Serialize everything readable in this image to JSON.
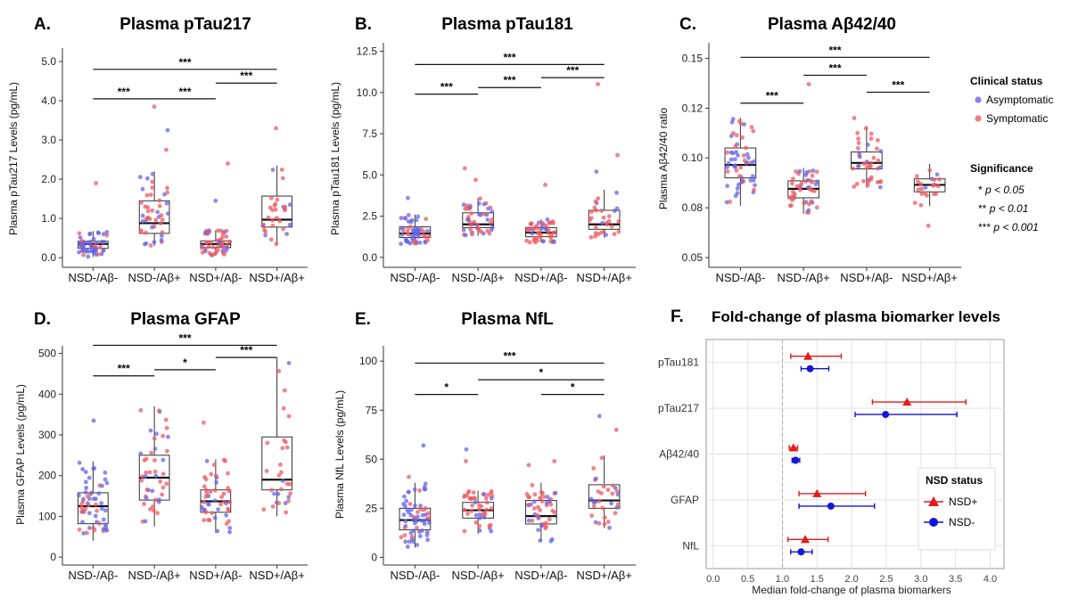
{
  "colors": {
    "asymptomatic": "#6464e6",
    "symptomatic": "#ee5a60",
    "nsd_plus": "#e41a1c",
    "nsd_minus": "#1515d6"
  },
  "legend": {
    "title": "Clinical status",
    "items": [
      "Asymptomatic",
      "Symptomatic"
    ],
    "sig_title": "Significance",
    "sig_items": [
      {
        "stars": "*",
        "text": "p < 0.05"
      },
      {
        "stars": "**",
        "text": "p < 0.01"
      },
      {
        "stars": "***",
        "text": "p < 0.001"
      }
    ]
  },
  "chart_data": [
    {
      "panel": "A.",
      "type": "box",
      "title": "Plasma pTau217",
      "ylabel": "Plasma pTau217 Levels (pg/mL)",
      "ylim": [
        -0.2,
        5.25
      ],
      "yticks": [
        "0.0",
        "1.0",
        "2.0",
        "3.0",
        "4.0",
        "5.0"
      ],
      "categories": [
        "NSD-/Aβ-",
        "NSD-/Aβ+",
        "NSD+/Aβ-",
        "NSD+/Aβ+"
      ],
      "boxes": [
        {
          "q1": 0.24,
          "median": 0.35,
          "q3": 0.42,
          "low": 0.02,
          "high": 0.68
        },
        {
          "q1": 0.62,
          "median": 0.88,
          "q3": 1.45,
          "low": 0.3,
          "high": 2.2
        },
        {
          "q1": 0.26,
          "median": 0.35,
          "q3": 0.43,
          "low": 0.05,
          "high": 0.7
        },
        {
          "q1": 0.78,
          "median": 0.97,
          "q3": 1.57,
          "low": 0.35,
          "high": 2.35
        }
      ],
      "points": [
        {
          "n": 55,
          "sym": 0.25,
          "seed": 3,
          "outliers": [
            1.9
          ]
        },
        {
          "n": 45,
          "sym": 0.65,
          "seed": 7,
          "outliers": [
            3.25,
            3.85,
            2.75
          ]
        },
        {
          "n": 48,
          "sym": 0.75,
          "seed": 11,
          "outliers": [
            1.45,
            2.4
          ]
        },
        {
          "n": 30,
          "sym": 0.8,
          "seed": 13,
          "outliers": [
            3.3
          ]
        }
      ],
      "comparisons": [
        {
          "from": 0,
          "to": 3,
          "y": 4.8,
          "label": "***"
        },
        {
          "from": 0,
          "to": 1,
          "y": 4.05,
          "label": "***"
        },
        {
          "from": 1,
          "to": 2,
          "y": 4.05,
          "label": "***"
        },
        {
          "from": 2,
          "to": 3,
          "y": 4.45,
          "label": "***"
        }
      ]
    },
    {
      "panel": "B.",
      "type": "box",
      "title": "Plasma pTau181",
      "ylabel": "Plasma pTau181 Levels (pg/mL)",
      "ylim": [
        -0.5,
        12.8
      ],
      "yticks": [
        "0.0",
        "2.5",
        "5.0",
        "7.5",
        "10.0",
        "12.5"
      ],
      "categories": [
        "NSD-/Aβ-",
        "NSD-/Aβ+",
        "NSD+/Aβ-",
        "NSD+/Aβ+"
      ],
      "boxes": [
        {
          "q1": 1.2,
          "median": 1.45,
          "q3": 1.85,
          "low": 0.8,
          "high": 2.6
        },
        {
          "q1": 1.8,
          "median": 2.0,
          "q3": 2.7,
          "low": 1.3,
          "high": 3.6
        },
        {
          "q1": 1.25,
          "median": 1.5,
          "q3": 1.8,
          "low": 0.9,
          "high": 2.3
        },
        {
          "q1": 1.7,
          "median": 2.0,
          "q3": 2.85,
          "low": 1.2,
          "high": 4.1
        }
      ],
      "points": [
        {
          "n": 55,
          "sym": 0.25,
          "seed": 17,
          "outliers": [
            3.6
          ]
        },
        {
          "n": 45,
          "sym": 0.65,
          "seed": 19,
          "outliers": [
            5.4,
            4.7
          ]
        },
        {
          "n": 48,
          "sym": 0.75,
          "seed": 23,
          "outliers": [
            4.4
          ]
        },
        {
          "n": 30,
          "sym": 0.8,
          "seed": 29,
          "outliers": [
            10.5,
            6.2,
            5.2
          ]
        }
      ],
      "comparisons": [
        {
          "from": 0,
          "to": 3,
          "y": 11.7,
          "label": "***"
        },
        {
          "from": 0,
          "to": 1,
          "y": 9.9,
          "label": "***"
        },
        {
          "from": 1,
          "to": 2,
          "y": 10.3,
          "label": "***"
        },
        {
          "from": 2,
          "to": 3,
          "y": 10.9,
          "label": "***"
        }
      ]
    },
    {
      "panel": "C.",
      "type": "box",
      "title": "Plasma Aβ42/40",
      "ylabel": "Plasma Aβ42/40 ratio",
      "ylim": [
        0.046,
        0.156
      ],
      "yticks": [
        "0.05",
        "0.08",
        "0.10",
        "0.12",
        "0.15"
      ],
      "yticks_at": [
        0.05,
        0.075,
        0.1,
        0.125,
        0.15
      ],
      "categories": [
        "NSD-/Aβ-",
        "NSD-/Aβ+",
        "NSD+/Aβ-",
        "NSD+/Aβ+"
      ],
      "boxes": [
        {
          "q1": 0.09,
          "median": 0.0965,
          "q3": 0.105,
          "low": 0.076,
          "high": 0.12
        },
        {
          "q1": 0.08,
          "median": 0.0845,
          "q3": 0.0885,
          "low": 0.072,
          "high": 0.095
        },
        {
          "q1": 0.0945,
          "median": 0.0975,
          "q3": 0.103,
          "low": 0.085,
          "high": 0.116
        },
        {
          "q1": 0.083,
          "median": 0.0865,
          "q3": 0.0895,
          "low": 0.076,
          "high": 0.097
        }
      ],
      "points": [
        {
          "n": 55,
          "sym": 0.3,
          "seed": 31,
          "outliers": []
        },
        {
          "n": 45,
          "sym": 0.6,
          "seed": 37,
          "outliers": [
            0.137
          ]
        },
        {
          "n": 40,
          "sym": 0.75,
          "seed": 41,
          "outliers": [
            0.12
          ]
        },
        {
          "n": 22,
          "sym": 0.8,
          "seed": 43,
          "outliers": [
            0.066
          ]
        }
      ],
      "comparisons": [
        {
          "from": 0,
          "to": 3,
          "y": 0.1505,
          "label": "***"
        },
        {
          "from": 0,
          "to": 1,
          "y": 0.1275,
          "label": "***"
        },
        {
          "from": 1,
          "to": 2,
          "y": 0.1415,
          "label": "***"
        },
        {
          "from": 2,
          "to": 3,
          "y": 0.133,
          "label": "***"
        }
      ]
    },
    {
      "panel": "D.",
      "type": "box",
      "title": "Plasma GFAP",
      "ylabel": "Plasma GFAP Levels (pg/mL)",
      "ylim": [
        -15,
        510
      ],
      "yticks": [
        "0",
        "100",
        "200",
        "300",
        "400",
        "500"
      ],
      "categories": [
        "NSD-/Aβ-",
        "NSD-/Aβ+",
        "NSD+/Aβ-",
        "NSD+/Aβ+"
      ],
      "boxes": [
        {
          "q1": 82,
          "median": 125,
          "q3": 158,
          "low": 40,
          "high": 235
        },
        {
          "q1": 140,
          "median": 195,
          "q3": 250,
          "low": 75,
          "high": 370
        },
        {
          "q1": 110,
          "median": 137,
          "q3": 165,
          "low": 60,
          "high": 240
        },
        {
          "q1": 165,
          "median": 190,
          "q3": 295,
          "low": 100,
          "high": 490
        }
      ],
      "points": [
        {
          "n": 55,
          "sym": 0.3,
          "seed": 47,
          "outliers": [
            335
          ]
        },
        {
          "n": 45,
          "sym": 0.65,
          "seed": 53,
          "outliers": []
        },
        {
          "n": 48,
          "sym": 0.75,
          "seed": 59,
          "outliers": [
            330
          ]
        },
        {
          "n": 30,
          "sym": 0.8,
          "seed": 61,
          "outliers": []
        }
      ],
      "comparisons": [
        {
          "from": 0,
          "to": 3,
          "y": 520,
          "label": "***"
        },
        {
          "from": 0,
          "to": 1,
          "y": 445,
          "label": "***"
        },
        {
          "from": 1,
          "to": 2,
          "y": 460,
          "label": "*"
        },
        {
          "from": 2,
          "to": 3,
          "y": 490,
          "label": "***"
        }
      ]
    },
    {
      "panel": "E.",
      "type": "box",
      "title": "Plasma NfL",
      "ylabel": "Plasma NfL Levels (pg/mL)",
      "ylim": [
        -3,
        106
      ],
      "yticks": [
        "0",
        "25",
        "50",
        "75",
        "100"
      ],
      "categories": [
        "NSD-/Aβ-",
        "NSD-/Aβ+",
        "NSD+/Aβ-",
        "NSD+/Aβ+"
      ],
      "boxes": [
        {
          "q1": 14,
          "median": 19,
          "q3": 25,
          "low": 5,
          "high": 38
        },
        {
          "q1": 20,
          "median": 24,
          "q3": 28,
          "low": 12,
          "high": 34
        },
        {
          "q1": 17,
          "median": 21,
          "q3": 29,
          "low": 8,
          "high": 38
        },
        {
          "q1": 25,
          "median": 29,
          "q3": 37,
          "low": 15,
          "high": 52
        }
      ],
      "points": [
        {
          "n": 60,
          "sym": 0.25,
          "seed": 67,
          "outliers": [
            57,
            41
          ]
        },
        {
          "n": 45,
          "sym": 0.65,
          "seed": 71,
          "outliers": [
            55,
            49
          ]
        },
        {
          "n": 45,
          "sym": 0.7,
          "seed": 73,
          "outliers": [
            49,
            47
          ]
        },
        {
          "n": 30,
          "sym": 0.8,
          "seed": 79,
          "outliers": [
            72,
            65
          ]
        }
      ],
      "comparisons": [
        {
          "from": 0,
          "to": 3,
          "y": 99,
          "label": "***"
        },
        {
          "from": 0,
          "to": 1,
          "y": 83,
          "label": "*"
        },
        {
          "from": 1,
          "to": 3,
          "y": 90.5,
          "label": "*"
        },
        {
          "from": 2,
          "to": 3,
          "y": 83,
          "label": "*"
        }
      ]
    },
    {
      "panel": "F.",
      "type": "scatter",
      "title": "Fold-change of plasma biomarker levels",
      "xlabel": "Median fold-change of plasma biomarkers",
      "xlim": [
        -0.1,
        4.2
      ],
      "xticks": [
        "0.0",
        "0.5",
        "1.0",
        "1.5",
        "2.0",
        "2.5",
        "3.0",
        "3.5",
        "4.0"
      ],
      "categories": [
        "pTau181",
        "pTau217",
        "Aβ42/40",
        "GFAP",
        "NfL"
      ],
      "reference_x": 1.0,
      "series": [
        {
          "name": "NSD+",
          "marker": "triangle",
          "values": [
            1.37,
            2.8,
            1.16,
            1.5,
            1.33
          ],
          "low": [
            1.12,
            2.3,
            1.1,
            1.24,
            1.08
          ],
          "high": [
            1.85,
            3.65,
            1.22,
            2.2,
            1.66
          ]
        },
        {
          "name": "NSD-",
          "marker": "circle",
          "values": [
            1.4,
            2.49,
            1.19,
            1.7,
            1.27
          ],
          "low": [
            1.27,
            2.05,
            1.14,
            1.24,
            1.12
          ],
          "high": [
            1.67,
            3.52,
            1.25,
            2.33,
            1.43
          ]
        }
      ],
      "legend_title": "NSD status"
    }
  ]
}
